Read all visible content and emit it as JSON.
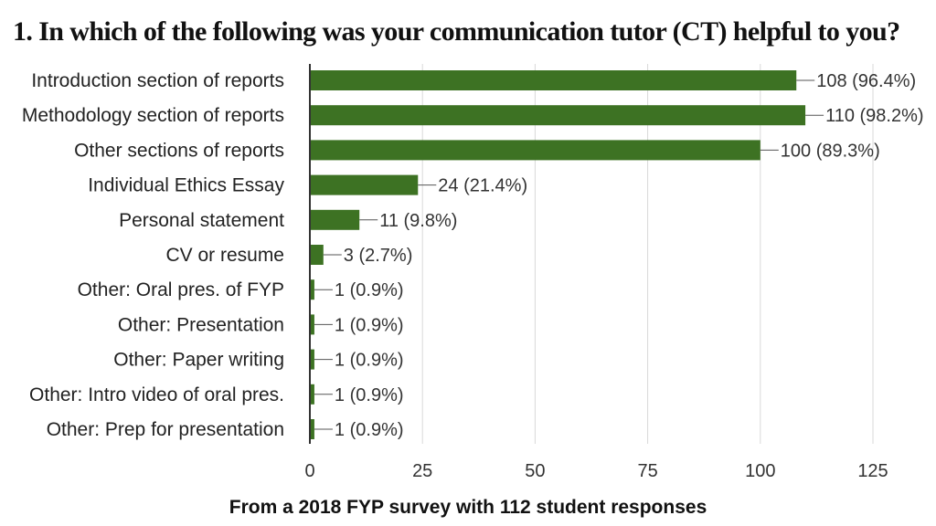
{
  "chart_data": {
    "type": "bar",
    "orientation": "horizontal",
    "title": "1. In which of the following was your communication tutor (CT) helpful to you?",
    "xlabel": "",
    "ylabel": "",
    "xlim": [
      0,
      125
    ],
    "xticks": [
      0,
      25,
      50,
      75,
      100,
      125
    ],
    "grid": true,
    "legend": "none",
    "bar_color": "#3d7223",
    "categories": [
      "Introduction section of reports",
      "Methodology section of  reports",
      "Other sections of reports",
      "Individual Ethics Essay",
      "Personal statement",
      "CV or resume",
      "Other: Oral pres. of FYP",
      "Other: Presentation",
      "Other: Paper writing",
      "Other: Intro video of oral pres.",
      "Other: Prep for presentation"
    ],
    "values": [
      108,
      110,
      100,
      24,
      11,
      3,
      1,
      1,
      1,
      1,
      1
    ],
    "data_labels": [
      "108 (96.4%)",
      "110 (98.2%)",
      "100 (89.3%)",
      "24 (21.4%)",
      "11 (9.8%)",
      "3 (2.7%)",
      "1 (0.9%)",
      "1 (0.9%)",
      "1 (0.9%)",
      "1 (0.9%)",
      "1 (0.9%)"
    ]
  },
  "caption": "From a 2018 FYP survey with 112 student responses"
}
